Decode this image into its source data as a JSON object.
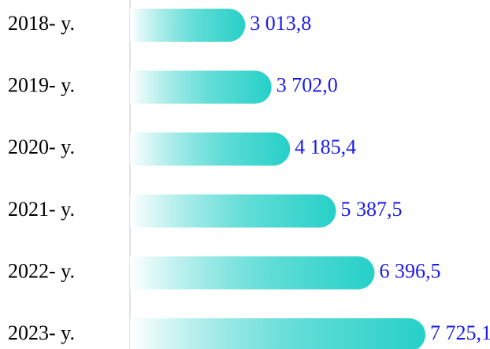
{
  "chart_data": {
    "type": "bar",
    "orientation": "horizontal",
    "categories": [
      "2018- y.",
      "2019- y.",
      "2020- y.",
      "2021- y.",
      "2022- y.",
      "2023- y."
    ],
    "values": [
      3013.8,
      3702.0,
      4185.4,
      5387.5,
      6396.5,
      7725.1
    ],
    "value_labels": [
      "3 013,8",
      "3 702,0",
      "4 185,4",
      "5 387,5",
      "6 396,5",
      "7 725,1"
    ],
    "color": "#26d0c8",
    "label_color": "#1a1aee"
  }
}
